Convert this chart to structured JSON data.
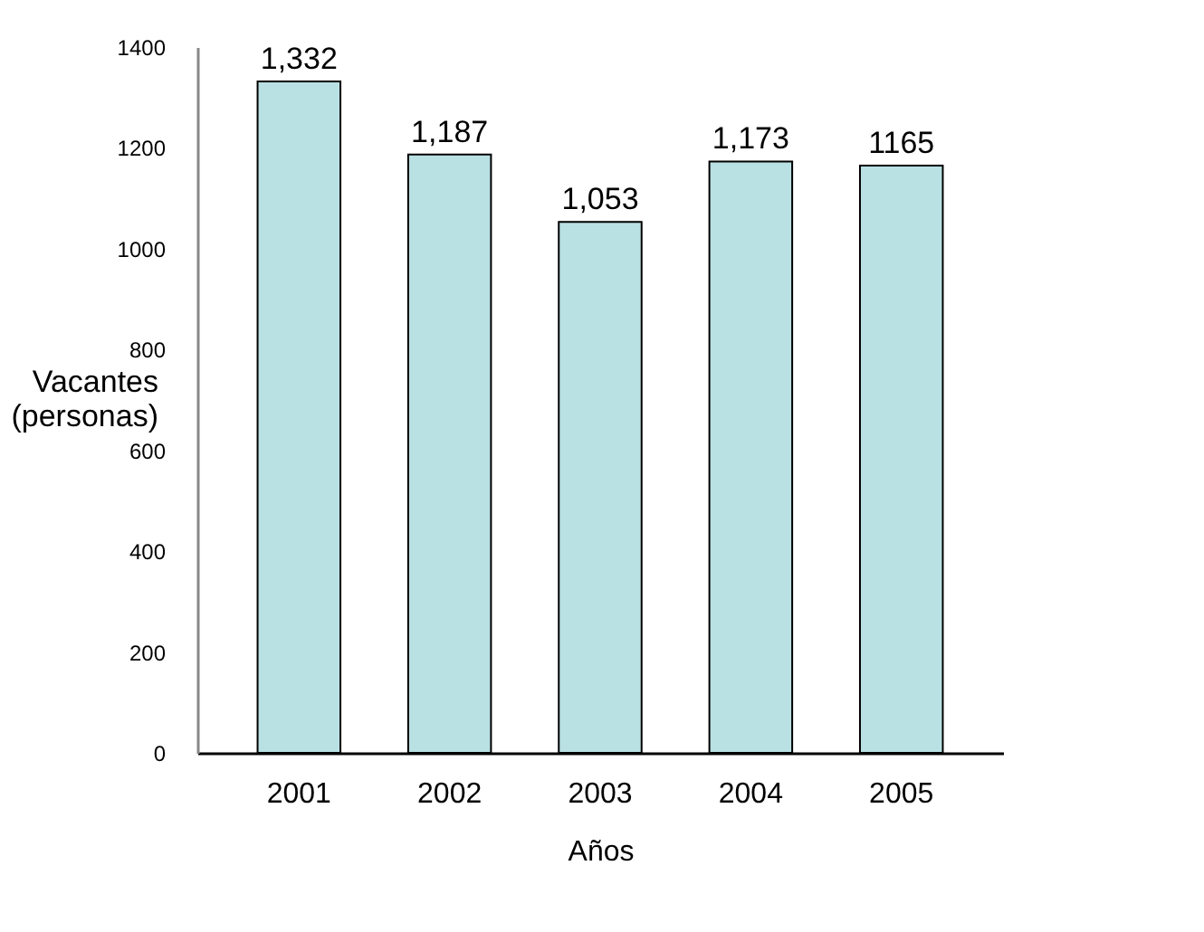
{
  "chart_data": {
    "type": "bar",
    "xlabel": "Años",
    "ylabel": "Vacantes (personas)",
    "categories": [
      "2001",
      "2002",
      "2003",
      "2004",
      "2005"
    ],
    "values": [
      1332,
      1187,
      1053,
      1173,
      1165
    ],
    "value_labels": [
      "1,332",
      "1,187",
      "1,053",
      "1,173",
      "1165"
    ],
    "color": "#b9e0e3",
    "ylim": [
      0,
      1400
    ],
    "yticks": [
      0,
      200,
      400,
      600,
      800,
      1000,
      1200,
      1400
    ],
    "grid": false
  }
}
